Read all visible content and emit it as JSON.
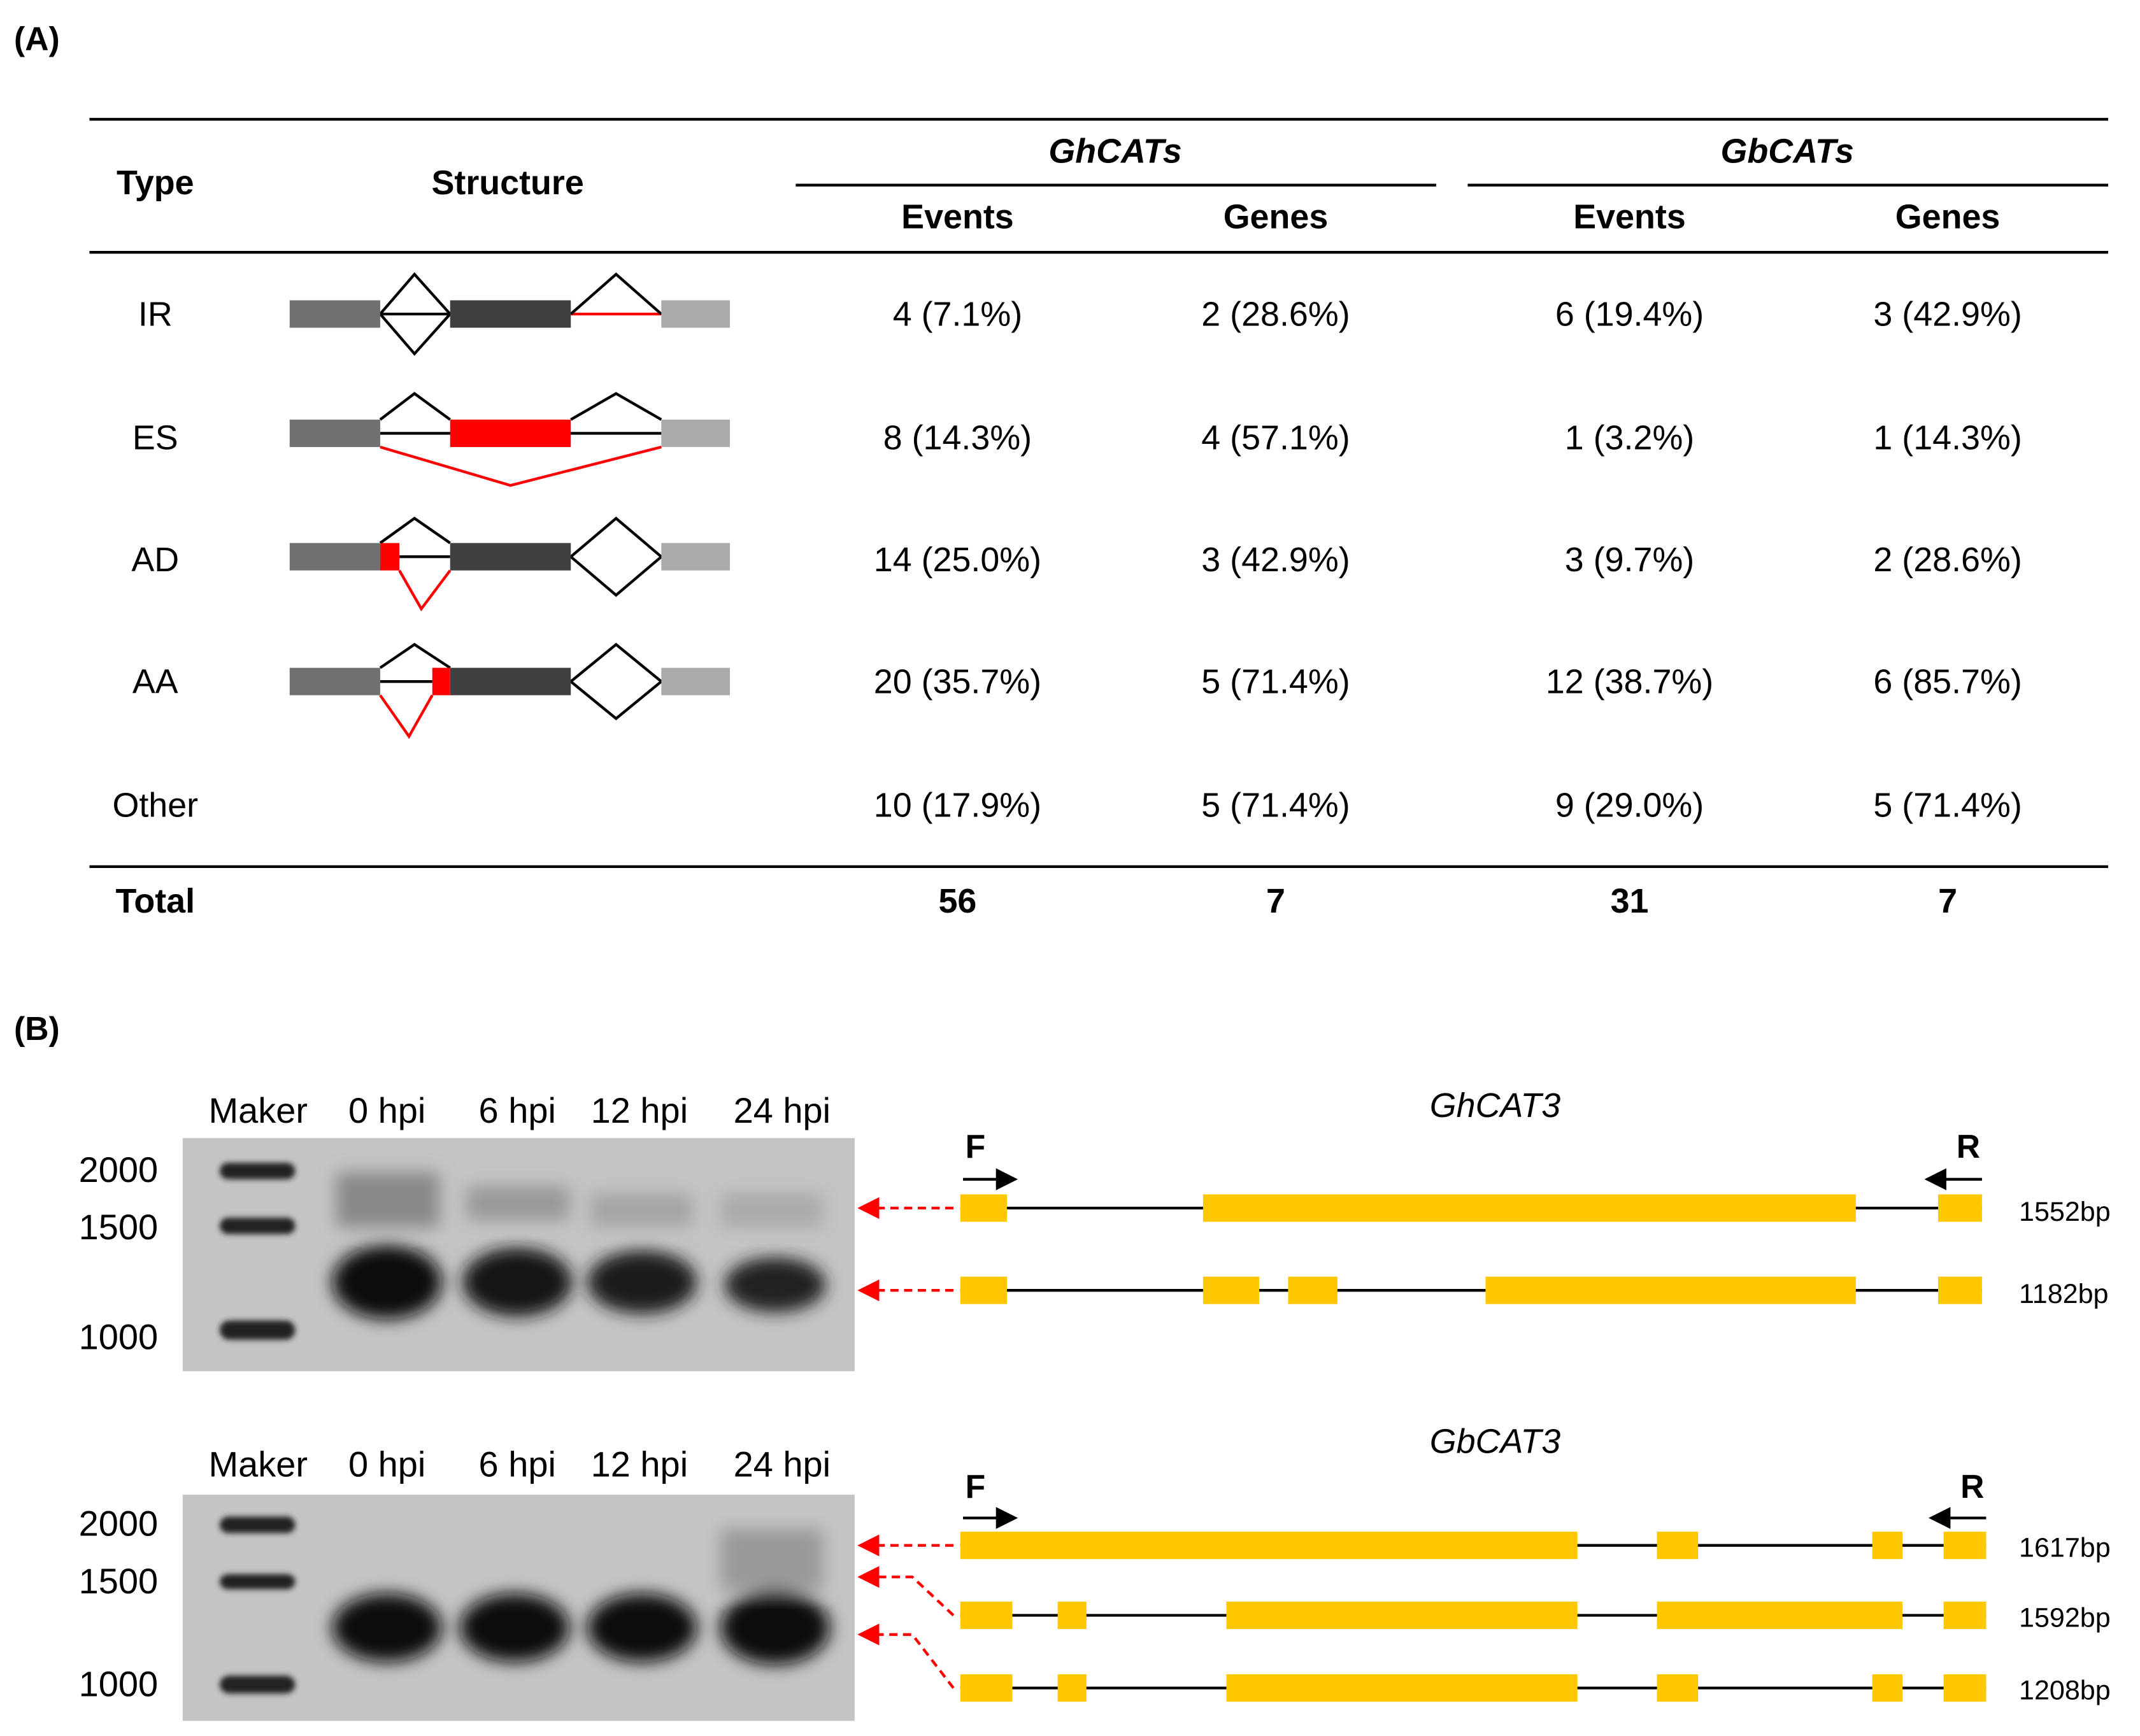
{
  "panel_a": {
    "label": "(A)",
    "table": {
      "header": {
        "type": "Type",
        "structure": "Structure",
        "groups": [
          "GhCATs",
          "GbCATs"
        ],
        "columns": [
          "Events",
          "Genes",
          "Events",
          "Genes"
        ]
      },
      "rows": [
        [
          "IR",
          "4 (7.1%)",
          "2 (28.6%)",
          "6 (19.4%)",
          "3 (42.9%)"
        ],
        [
          "ES",
          "8 (14.3%)",
          "4 (57.1%)",
          "1 (3.2%)",
          "1 (14.3%)"
        ],
        [
          "AD",
          "14 (25.0%)",
          "3 (42.9%)",
          "3 (9.7%)",
          "2 (28.6%)"
        ],
        [
          "AA",
          "20 (35.7%)",
          "5 (71.4%)",
          "12 (38.7%)",
          "6 (85.7%)"
        ],
        [
          "Other",
          "10 (17.9%)",
          "5 (71.4%)",
          "9 (29.0%)",
          "5 (71.4%)"
        ]
      ],
      "total": [
        "Total",
        "56",
        "7",
        "31",
        "7"
      ]
    }
  },
  "panel_b": {
    "label": "(B)",
    "gels": [
      {
        "lanes": [
          "Maker",
          "0 hpi",
          "6 hpi",
          "12 hpi",
          "24 hpi"
        ],
        "markers": [
          "2000",
          "1500",
          "1000"
        ],
        "gene": "GhCAT3",
        "primers": [
          "F",
          "R"
        ],
        "transcripts": [
          "1552bp",
          "1182bp"
        ]
      },
      {
        "lanes": [
          "Maker",
          "0 hpi",
          "6 hpi",
          "12 hpi",
          "24 hpi"
        ],
        "markers": [
          "2000",
          "1500",
          "1000"
        ],
        "gene": "GbCAT3",
        "primers": [
          "F",
          "R"
        ],
        "transcripts": [
          "1617bp",
          "1592bp",
          "1208bp"
        ]
      }
    ]
  }
}
